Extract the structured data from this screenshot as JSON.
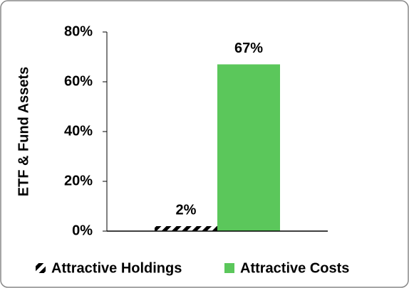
{
  "chart_data": {
    "type": "bar",
    "y_label": "ETF & Fund Assets",
    "categories": [
      null
    ],
    "series": [
      {
        "name": "Attractive Holdings",
        "color": "#000000",
        "pattern": "hatch",
        "values": [
          2
        ],
        "value_labels": [
          "2%"
        ]
      },
      {
        "name": "Attractive Costs",
        "color": "#5bc75b",
        "pattern": "solid",
        "values": [
          67
        ],
        "value_labels": [
          "67%"
        ]
      }
    ],
    "ylim": [
      0,
      80
    ],
    "yticks": [
      {
        "value": 0,
        "label": "0%"
      },
      {
        "value": 20,
        "label": "20%"
      },
      {
        "value": 40,
        "label": "40%"
      },
      {
        "value": 60,
        "label": "60%"
      },
      {
        "value": 80,
        "label": "80%"
      }
    ],
    "grid": false,
    "legend": "bottom"
  }
}
